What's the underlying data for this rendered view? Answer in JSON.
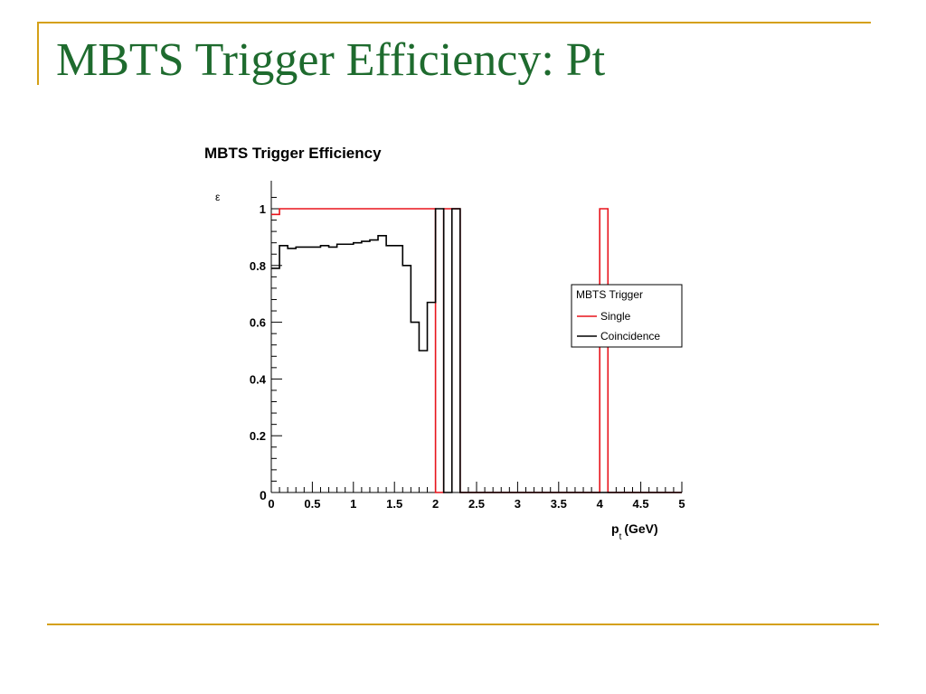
{
  "slide": {
    "title": "MBTS Trigger Efficiency: Pt",
    "accent_color": "#d4a017",
    "title_color": "#1e6b2e"
  },
  "chart_data": {
    "type": "line",
    "title": "MBTS Trigger Efficiency",
    "xlabel": "p",
    "xlabel_sub": "t",
    "xlabel_unit": "(GeV)",
    "ylabel": "ε",
    "xlim": [
      0,
      5
    ],
    "ylim": [
      0,
      1.05
    ],
    "x_tick_labels": [
      "0",
      "0.5",
      "1",
      "1.5",
      "2",
      "2.5",
      "3",
      "3.5",
      "4",
      "4.5",
      "5"
    ],
    "y_tick_labels": [
      "0",
      "0.2",
      "0.4",
      "0.6",
      "0.8",
      "1"
    ],
    "y_origin_label": "0",
    "grid": false,
    "legend": {
      "title": "MBTS Trigger",
      "placement": "right",
      "entries": [
        "Single",
        "Coincidence"
      ]
    },
    "bin_edges": [
      0,
      0.1,
      0.2,
      0.3,
      0.4,
      0.5,
      0.6,
      0.7,
      0.8,
      0.9,
      1.0,
      1.1,
      1.2,
      1.3,
      1.4,
      1.5,
      1.6,
      1.7,
      1.8,
      1.9,
      2.0,
      2.1,
      2.2,
      2.3,
      2.4,
      2.5,
      2.6,
      2.7,
      2.8,
      2.9,
      3.0,
      3.1,
      3.2,
      3.3,
      3.4,
      3.5,
      3.6,
      3.7,
      3.8,
      3.9,
      4.0,
      4.1,
      4.2,
      4.3,
      4.4,
      4.5,
      4.6,
      4.7,
      4.8,
      4.9,
      5.0
    ],
    "series": [
      {
        "name": "Single",
        "color": "#e8141c",
        "values": [
          0.98,
          1.0,
          1.0,
          1.0,
          1.0,
          1.0,
          1.0,
          1.0,
          1.0,
          1.0,
          1.0,
          1.0,
          1.0,
          1.0,
          1.0,
          1.0,
          1.0,
          1.0,
          1.0,
          1.0,
          0,
          1.0,
          1.0,
          0,
          0,
          0,
          0,
          0,
          0,
          0,
          0,
          0,
          0,
          0,
          0,
          0,
          0,
          0,
          0,
          0,
          1.0,
          0,
          0,
          0,
          0,
          0,
          0,
          0,
          0,
          0
        ]
      },
      {
        "name": "Coincidence",
        "color": "#000000",
        "values": [
          0.79,
          0.87,
          0.86,
          0.865,
          0.865,
          0.865,
          0.87,
          0.865,
          0.875,
          0.875,
          0.88,
          0.885,
          0.89,
          0.905,
          0.87,
          0.87,
          0.8,
          0.6,
          0.5,
          0.67,
          1.0,
          0,
          1.0,
          0,
          0,
          0,
          0,
          0,
          0,
          0,
          0,
          0,
          0,
          0,
          0,
          0,
          0,
          0,
          0,
          0,
          0,
          0,
          0,
          0,
          0,
          0,
          0,
          0,
          0,
          0
        ]
      }
    ]
  }
}
